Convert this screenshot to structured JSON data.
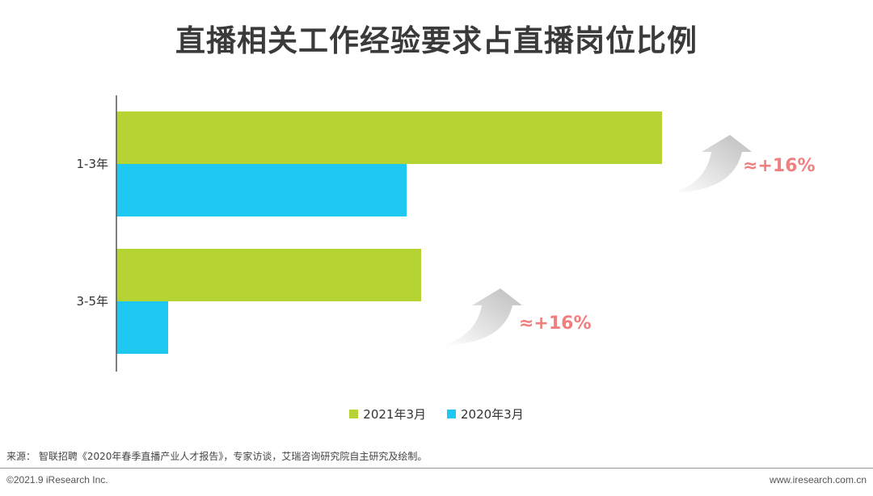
{
  "chart_data": {
    "type": "bar",
    "orientation": "horizontal",
    "title": "直播相关工作经验要求占直播岗位比例",
    "categories": [
      "1-3年",
      "3-5年"
    ],
    "series": [
      {
        "name": "2021年3月",
        "color": "#b5d333",
        "values": [
          67.5,
          37.7
        ]
      },
      {
        "name": "2020年3月",
        "color": "#1ec8f0",
        "values": [
          35.9,
          6.4
        ]
      }
    ],
    "xlim": [
      0,
      100
    ],
    "grid": false,
    "legend_position": "bottom",
    "annotations": [
      "≈+16%",
      "≈+16%"
    ]
  },
  "source_text": "来源：  智联招聘《2020年春季直播产业人才报告》，专家访谈，艾瑞咨询研究院自主研究及绘制。",
  "footer": {
    "copyright": "©2021.9 iResearch Inc.",
    "website": "www.iresearch.com.cn"
  }
}
